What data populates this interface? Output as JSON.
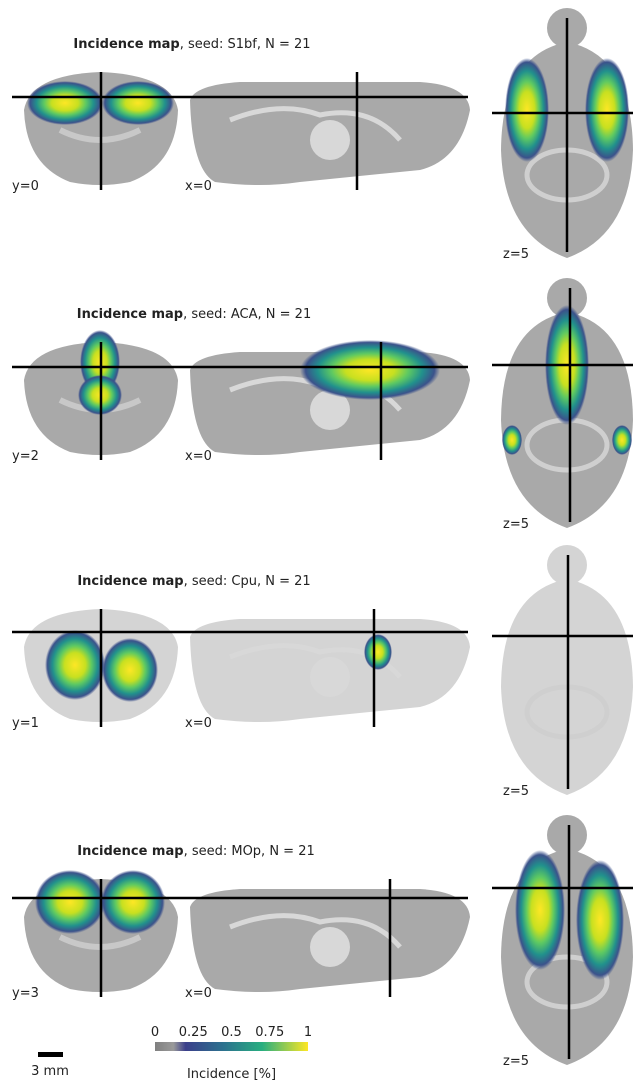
{
  "panels": [
    {
      "title_bold": "Incidence map",
      "title_rest": ", seed: S1bf, N = 21",
      "coronal_label": "y=0",
      "sagittal_label": "x=0",
      "axial_label": "z=5"
    },
    {
      "title_bold": "Incidence map",
      "title_rest": ", seed: ACA, N = 21",
      "coronal_label": "y=2",
      "sagittal_label": "x=0",
      "axial_label": "z=5"
    },
    {
      "title_bold": "Incidence map",
      "title_rest": ", seed: Cpu, N = 21",
      "coronal_label": "y=1",
      "sagittal_label": "x=0",
      "axial_label": "z=5"
    },
    {
      "title_bold": "Incidence map",
      "title_rest": ", seed: MOp, N = 21",
      "coronal_label": "y=3",
      "sagittal_label": "x=0",
      "axial_label": "z=5"
    }
  ],
  "scale_bar": "3 mm",
  "colorbar": {
    "ticks": [
      0,
      0.25,
      0.5,
      0.75,
      1
    ],
    "label": "Incidence [%]"
  }
}
